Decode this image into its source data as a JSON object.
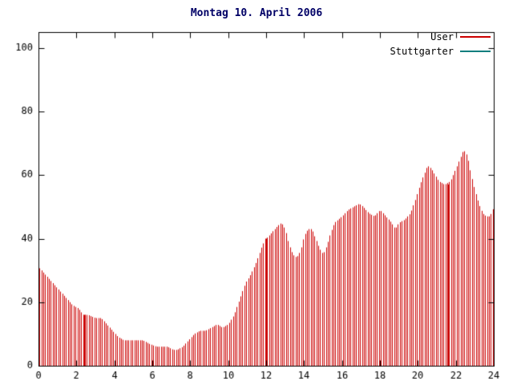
{
  "title": "Montag 10. April 2006",
  "legend": {
    "items": [
      {
        "label": "User",
        "color": "#cc0000"
      },
      {
        "label": "Stuttgarter",
        "color": "#0e7e7e"
      }
    ]
  },
  "colors": {
    "background": "#ffffff",
    "axis": "#000000",
    "title": "#000066",
    "user_series": "#cc0000",
    "stuttgarter_series": "#0e7e7e"
  },
  "chart_data": {
    "type": "bar",
    "style": "impulses",
    "title": "Montag 10. April 2006",
    "xlabel": "",
    "ylabel": "",
    "xlim": [
      0,
      24
    ],
    "ylim": [
      0,
      105
    ],
    "xticks": [
      0,
      2,
      4,
      6,
      8,
      10,
      12,
      14,
      16,
      18,
      20,
      22,
      24
    ],
    "yticks": [
      0,
      20,
      40,
      60,
      80,
      100
    ],
    "grid": false,
    "legend_position": "top-right-inside",
    "bar_step": 0.1,
    "series": [
      {
        "name": "User",
        "color": "#cc0000",
        "x": [
          0,
          0.3,
          0.6,
          0.9,
          1.2,
          1.5,
          1.8,
          2.1,
          2.35,
          2.6,
          3.0,
          3.3,
          3.6,
          3.9,
          4.2,
          4.5,
          5.0,
          5.5,
          5.8,
          6.2,
          6.8,
          7.1,
          7.3,
          7.6,
          7.9,
          8.2,
          8.5,
          8.8,
          9.1,
          9.4,
          9.7,
          10.0,
          10.3,
          10.6,
          10.9,
          11.2,
          11.5,
          11.8,
          12.0,
          12.3,
          12.6,
          12.8,
          13.0,
          13.2,
          13.4,
          13.6,
          13.8,
          14.0,
          14.2,
          14.4,
          14.6,
          14.8,
          15.0,
          15.2,
          15.4,
          15.6,
          15.8,
          16.0,
          16.3,
          16.6,
          16.9,
          17.1,
          17.4,
          17.7,
          18.0,
          18.3,
          18.6,
          18.8,
          19.0,
          19.3,
          19.6,
          19.9,
          20.1,
          20.3,
          20.5,
          20.7,
          20.9,
          21.1,
          21.4,
          21.7,
          22.0,
          22.2,
          22.4,
          22.6,
          22.8,
          23.0,
          23.2,
          23.4,
          23.6,
          23.8,
          24.0
        ],
        "values": [
          31,
          29,
          27,
          25,
          23,
          21,
          19,
          18,
          16,
          16,
          15,
          15,
          13,
          11,
          9,
          8,
          8,
          8,
          7,
          6,
          6,
          5,
          5,
          6,
          8,
          10,
          11,
          11,
          12,
          13,
          12,
          13,
          16,
          21,
          26,
          29,
          33,
          38,
          40,
          42,
          44,
          45,
          43,
          38,
          35,
          34,
          36,
          41,
          43,
          43,
          40,
          37,
          35,
          38,
          42,
          45,
          46,
          47,
          49,
          50,
          51,
          50,
          48,
          47,
          49,
          47,
          45,
          43,
          45,
          46,
          48,
          53,
          57,
          60,
          63,
          62,
          60,
          58,
          57,
          58,
          62,
          65,
          68,
          66,
          60,
          55,
          51,
          48,
          47,
          47,
          50
        ]
      },
      {
        "name": "Stuttgarter",
        "color": "#0e7e7e",
        "x": [],
        "values": []
      }
    ],
    "solid_marks": [
      {
        "x": 2.4,
        "value": 16
      },
      {
        "x": 12.0,
        "value": 40
      },
      {
        "x": 21.6,
        "value": 57
      }
    ]
  }
}
